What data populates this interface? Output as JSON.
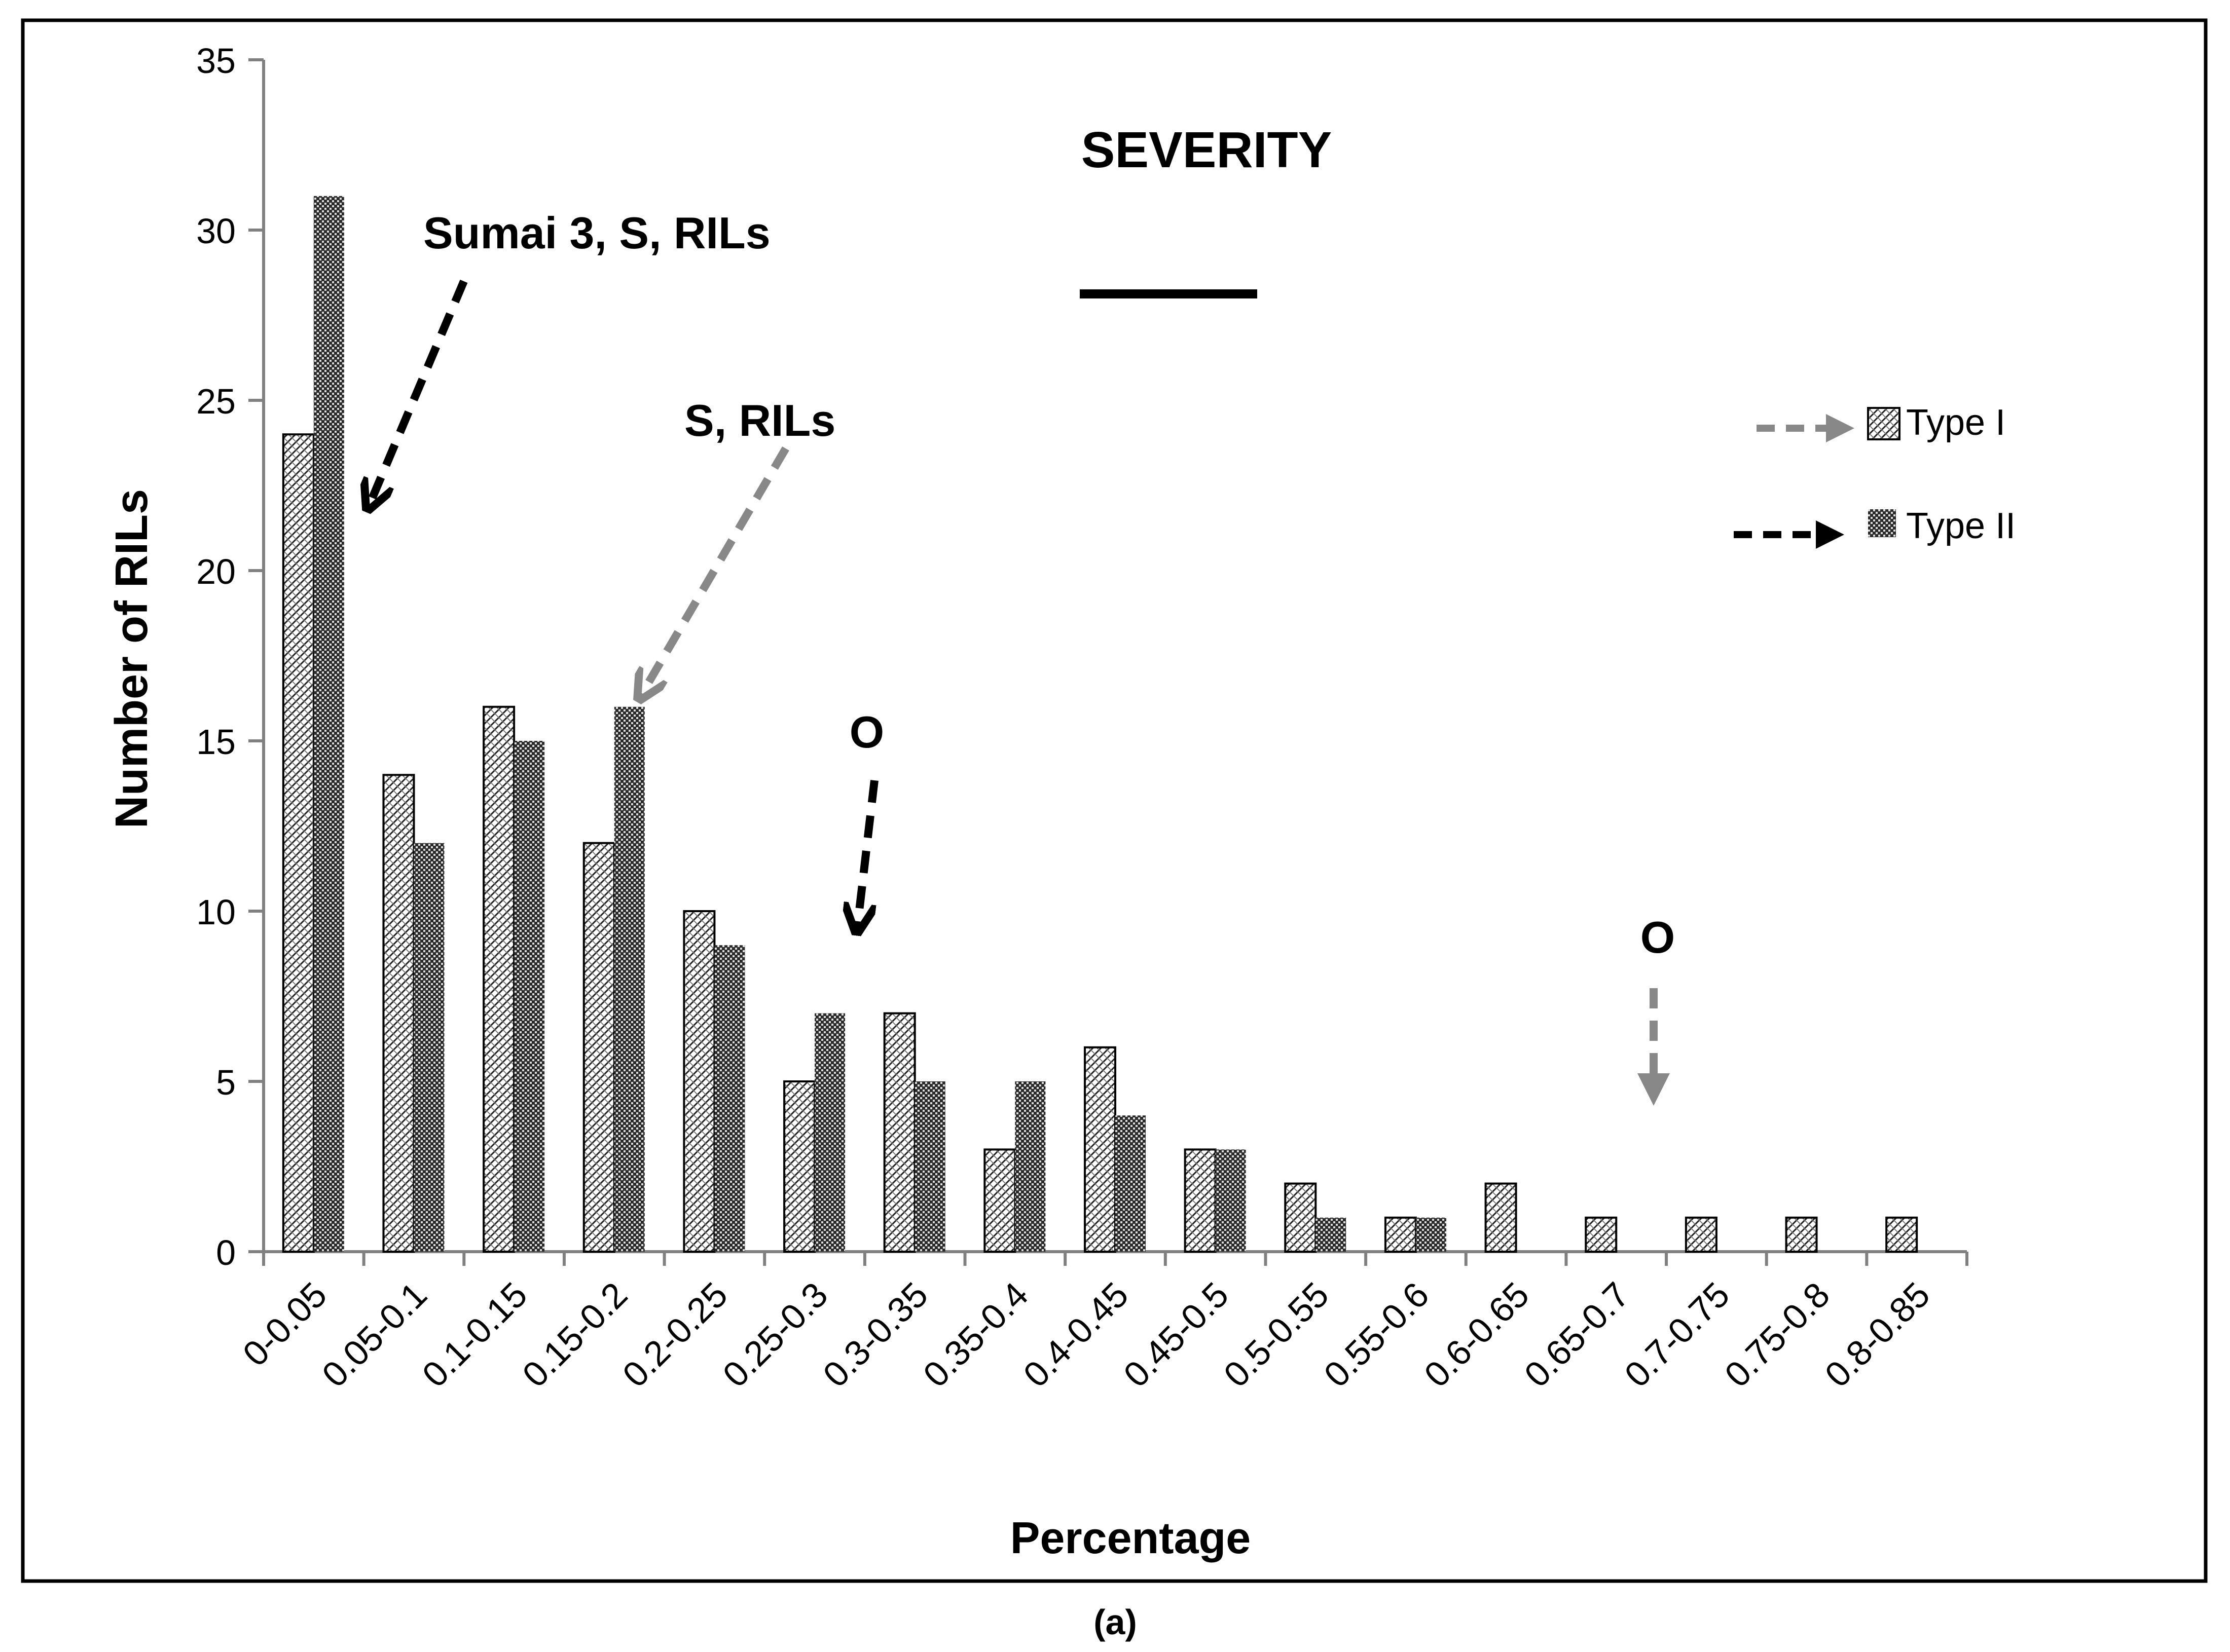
{
  "chart_data": {
    "type": "bar",
    "title": "SEVERITY",
    "xlabel": "Percentage",
    "ylabel": "Number of RILs",
    "caption": "(a)",
    "ylim": [
      0,
      35
    ],
    "yticks": [
      "0",
      "5",
      "10",
      "15",
      "20",
      "25",
      "30",
      "35"
    ],
    "grid": false,
    "legend_position": "right",
    "categories": [
      "0-0.05",
      "0.05-0.1",
      "0.1-0.15",
      "0.15-0.2",
      "0.2-0.25",
      "0.25-0.3",
      "0.3-0.35",
      "0.35-0.4",
      "0.4-0.45",
      "0.45-0.5",
      "0.5-0.55",
      "0.55-0.6",
      "0.6-0.65",
      "0.65-0.7",
      "0.7-0.75",
      "0.75-0.8",
      "0.8-0.85"
    ],
    "series": [
      {
        "name": "Type I",
        "values": [
          24,
          14,
          16,
          12,
          10,
          5,
          7,
          3,
          6,
          3,
          2,
          1,
          2,
          1,
          1,
          1,
          1
        ]
      },
      {
        "name": "Type II",
        "values": [
          31,
          12,
          15,
          16,
          9,
          7,
          5,
          5,
          4,
          3,
          1,
          1,
          0,
          0,
          0,
          0,
          0
        ]
      }
    ],
    "annotations": [
      {
        "text": "Sumai 3, S, RILs",
        "target_category": "0-0.05",
        "arrow_color": "#000000"
      },
      {
        "text": "S, RILs",
        "target_category": "0.15-0.2",
        "arrow_color": "#888888"
      },
      {
        "text": "O",
        "target_category": "0.25-0.3",
        "arrow_color": "#000000"
      },
      {
        "text": "O",
        "target_category": "0.65-0.7",
        "arrow_color": "#888888"
      }
    ]
  }
}
